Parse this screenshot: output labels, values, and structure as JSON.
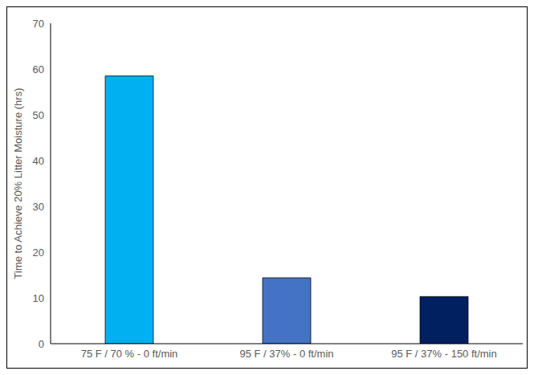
{
  "chart_data": {
    "type": "bar",
    "ylabel": "Time to Achieve 20% Litter Moisture (hrs)",
    "categories": [
      "75 F / 70 % - 0 ft/min",
      "95 F / 37% - 0 ft/min",
      "95 F / 37% - 150 ft/min"
    ],
    "values": [
      58.5,
      14.4,
      10.3
    ],
    "colors": [
      "#00b0f0",
      "#4472c4",
      "#002060"
    ],
    "ylim": [
      0,
      70
    ],
    "yticks": [
      0,
      10,
      20,
      30,
      40,
      50,
      60,
      70
    ],
    "grid": false
  }
}
